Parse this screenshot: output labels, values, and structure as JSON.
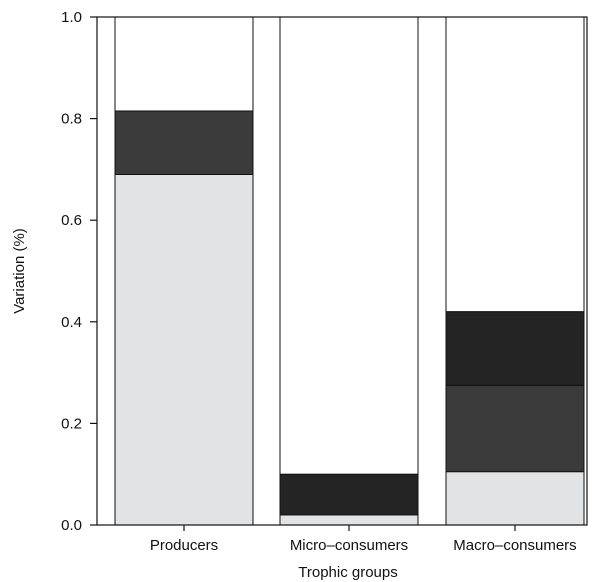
{
  "chart_data": {
    "type": "bar",
    "stacked": true,
    "title": "",
    "xlabel": "Trophic groups",
    "ylabel": "Variation (%)",
    "ylim": [
      0,
      1.0
    ],
    "yticks": [
      0.0,
      0.2,
      0.4,
      0.6,
      0.8,
      1.0
    ],
    "ytick_labels": [
      "0.0",
      "0.2",
      "0.4",
      "0.6",
      "0.8",
      "1.0"
    ],
    "categories": [
      "Producers",
      "Micro–consumers",
      "Macro–consumers"
    ],
    "series": [
      {
        "color": "#e2e3e5",
        "values": [
          0.69,
          0.02,
          0.105
        ]
      },
      {
        "color": "#3b3b3b",
        "values": [
          0.125,
          0.0,
          0.17
        ]
      },
      {
        "color": "#242424",
        "values": [
          0.0,
          0.08,
          0.145
        ]
      },
      {
        "color": "#ffffff",
        "values": [
          0.185,
          0.9,
          0.58
        ]
      }
    ],
    "grid": false,
    "legend": "none"
  }
}
